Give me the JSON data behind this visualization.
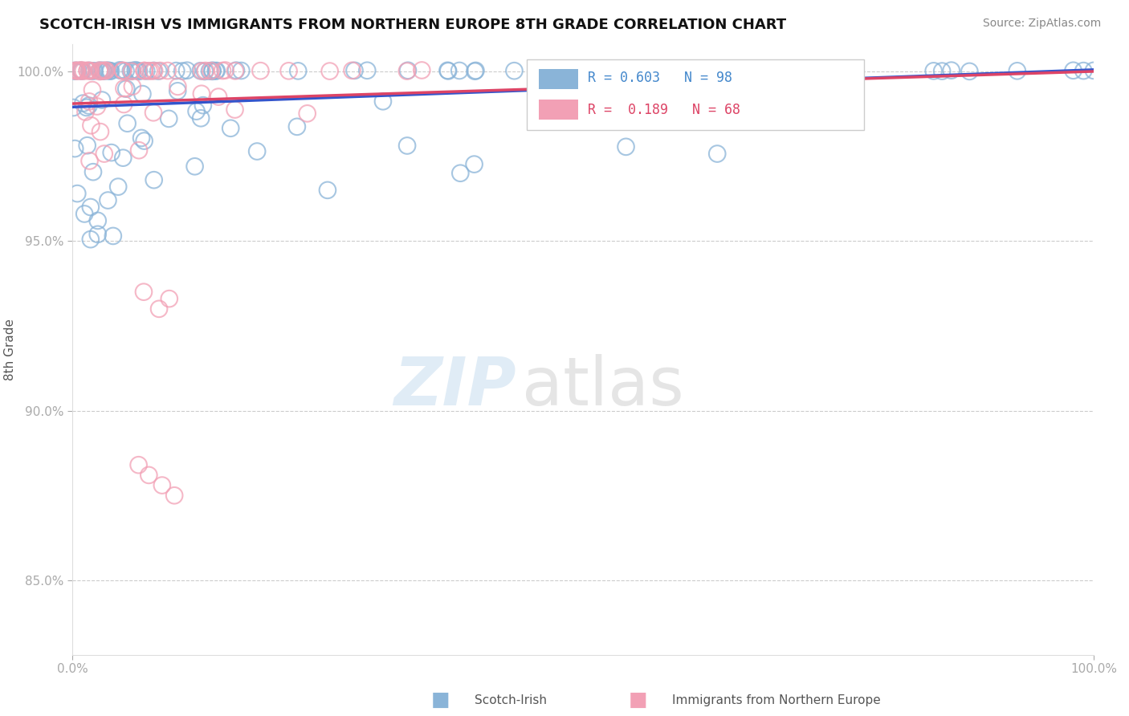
{
  "title": "SCOTCH-IRISH VS IMMIGRANTS FROM NORTHERN EUROPE 8TH GRADE CORRELATION CHART",
  "source": "Source: ZipAtlas.com",
  "ylabel": "8th Grade",
  "xlim": [
    0.0,
    1.0
  ],
  "ylim": [
    0.828,
    1.008
  ],
  "ytick_positions": [
    0.85,
    0.9,
    0.95,
    1.0
  ],
  "ytick_labels": [
    "85.0%",
    "90.0%",
    "95.0%",
    "100.0%"
  ],
  "blue_R": 0.603,
  "blue_N": 98,
  "pink_R": 0.189,
  "pink_N": 68,
  "blue_color": "#8ab4d8",
  "pink_color": "#f2a0b5",
  "blue_line_color": "#3355cc",
  "pink_line_color": "#dd4466",
  "legend_label_blue": "Scotch-Irish",
  "legend_label_pink": "Immigrants from Northern Europe",
  "blue_line_x0": 0.0,
  "blue_line_y0": 0.9895,
  "blue_line_x1": 1.0,
  "blue_line_y1": 1.0005,
  "pink_line_x0": 0.0,
  "pink_line_y0": 0.9905,
  "pink_line_x1": 1.0,
  "pink_line_y1": 1.0
}
